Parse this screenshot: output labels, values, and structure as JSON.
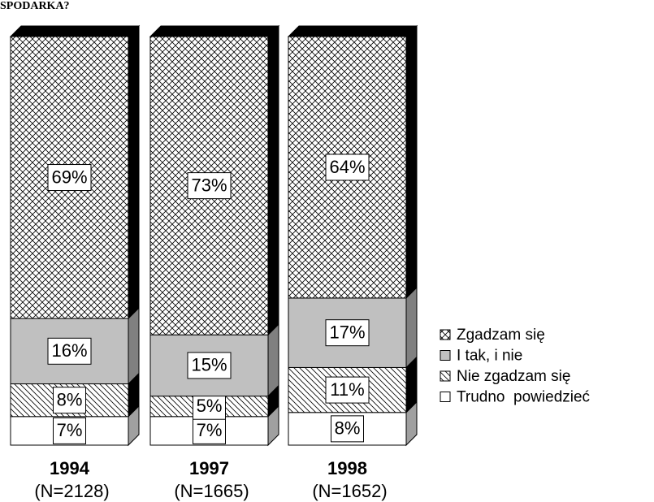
{
  "chart_data": {
    "type": "stacked-bar-3d",
    "title": "SPODARKA?",
    "categories": [
      "1994",
      "1997",
      "1998"
    ],
    "sublabels": [
      "(N=2128)",
      "(N=1665)",
      "(N=1652)"
    ],
    "ylim": [
      0,
      100
    ],
    "series": [
      {
        "name": "Trudno  powiedzieć",
        "color": "#ffffff",
        "side": "#a0a0a0",
        "pattern": "none",
        "values": [
          7,
          7,
          8
        ],
        "value_labels": [
          "7%",
          "7%",
          "8%"
        ]
      },
      {
        "name": "Nie zgadzam się",
        "color": "#ffffff",
        "side": "#000000",
        "pattern": "diagonal",
        "values": [
          8,
          5,
          11
        ],
        "value_labels": [
          "8%",
          "5%",
          "11%"
        ]
      },
      {
        "name": "I tak, i nie",
        "color": "#c0c0c0",
        "side": "#808080",
        "pattern": "none",
        "values": [
          16,
          15,
          17
        ],
        "value_labels": [
          "16%",
          "15%",
          "17%"
        ]
      },
      {
        "name": "Zgadzam się",
        "color": "#ffffff",
        "side": "#000000",
        "pattern": "cross",
        "values": [
          69,
          73,
          64
        ],
        "value_labels": [
          "69%",
          "73%",
          "64%"
        ]
      }
    ],
    "legend": "right"
  }
}
